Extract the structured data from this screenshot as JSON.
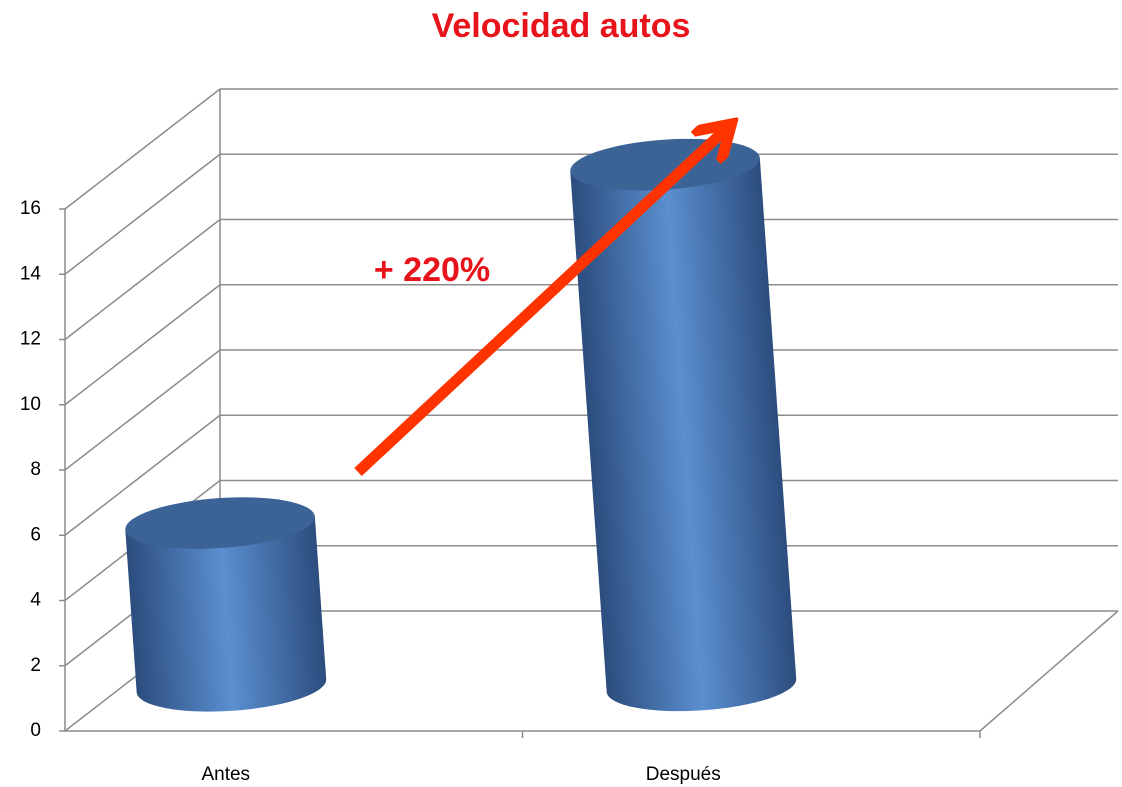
{
  "chart_data": {
    "type": "bar3d",
    "title": "Velocidad autos",
    "categories": [
      "Antes",
      "Después"
    ],
    "values": [
      5,
      16
    ],
    "color": "#4f81bd",
    "ylim": [
      0,
      16
    ],
    "yticks": [
      0,
      2,
      4,
      6,
      8,
      10,
      12,
      14,
      16
    ],
    "grid": true,
    "annotation": "+ 220%"
  }
}
